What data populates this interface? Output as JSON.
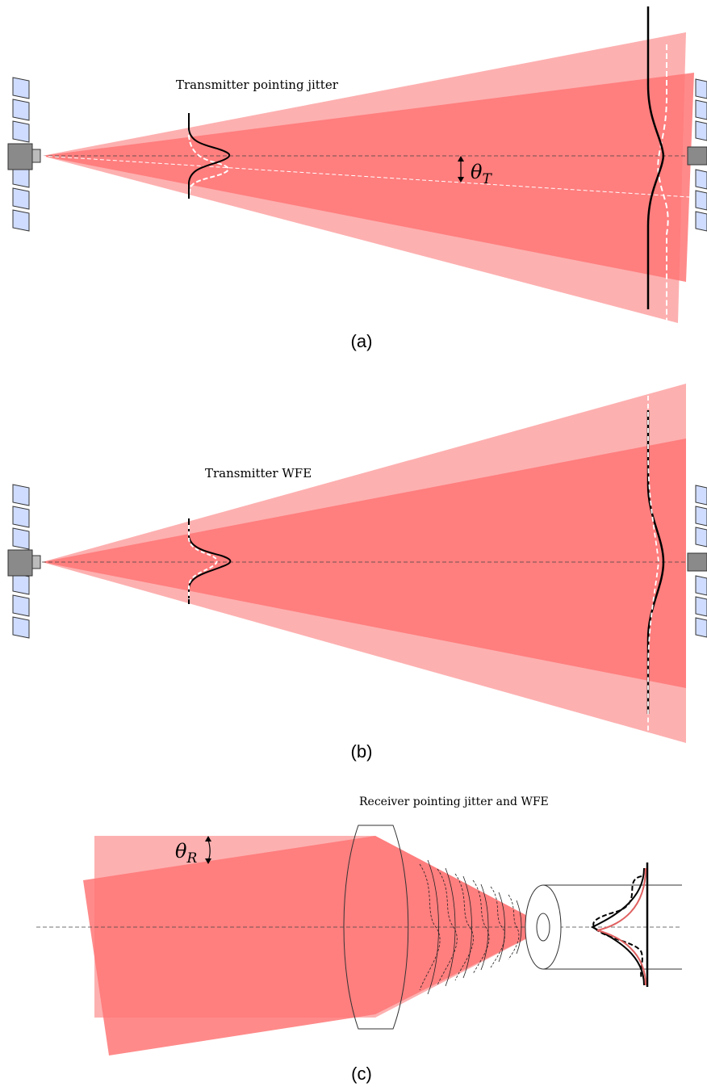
{
  "panels": [
    {
      "id": "a",
      "caption": "(a)",
      "title": "Transmitter pointing jitter",
      "angle_symbol": "θ",
      "angle_subscript": "T"
    },
    {
      "id": "b",
      "caption": "(b)",
      "title": "Transmitter WFE"
    },
    {
      "id": "c",
      "caption": "(c)",
      "title": "Receiver pointing jitter and WFE",
      "angle_symbol": "θ",
      "angle_subscript": "R"
    }
  ],
  "colors": {
    "beam_light": "#fdb0b0",
    "beam_dark": "#ff7676",
    "panel_blue": "#cfdcff",
    "body_gray": "#8a8a8a",
    "ideal_curve": "#000000",
    "jittered_curve": "#ffffff",
    "focal_red_curve": "#e06060"
  }
}
